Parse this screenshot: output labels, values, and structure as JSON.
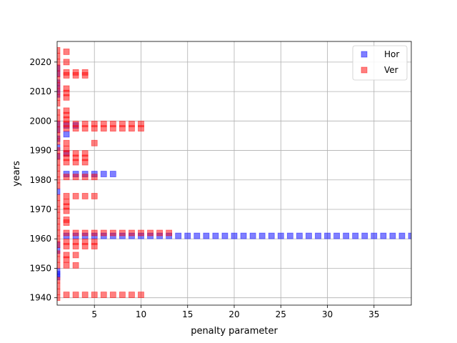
{
  "chart_data": {
    "type": "scatter",
    "title": "",
    "xlabel": "penalty parameter",
    "ylabel": "years",
    "xlim": [
      1,
      39
    ],
    "ylim": [
      1937.5,
      2027
    ],
    "xticks": [
      5,
      10,
      15,
      20,
      25,
      30,
      35
    ],
    "yticks": [
      1940,
      1950,
      1960,
      1970,
      1980,
      1990,
      2000,
      2010,
      2020
    ],
    "grid": true,
    "legend_position": "top-right",
    "series": [
      {
        "name": "Hor",
        "color": "#0000ff",
        "marker": "square",
        "alpha": 0.5,
        "points": [
          [
            2,
            1998.5
          ],
          [
            3,
            1998.5
          ],
          [
            2,
            1995.5
          ],
          [
            2,
            1989
          ],
          [
            2,
            1982
          ],
          [
            3,
            1982
          ],
          [
            4,
            1982
          ],
          [
            5,
            1982
          ],
          [
            6,
            1982
          ],
          [
            7,
            1982
          ],
          [
            2,
            1961
          ],
          [
            3,
            1961
          ],
          [
            4,
            1961
          ],
          [
            5,
            1961
          ],
          [
            6,
            1961
          ],
          [
            7,
            1961
          ],
          [
            8,
            1961
          ],
          [
            9,
            1961
          ],
          [
            10,
            1961
          ],
          [
            11,
            1961
          ],
          [
            12,
            1961
          ],
          [
            13,
            1961
          ],
          [
            14,
            1961
          ],
          [
            15,
            1961
          ],
          [
            16,
            1961
          ],
          [
            17,
            1961
          ],
          [
            18,
            1961
          ],
          [
            19,
            1961
          ],
          [
            20,
            1961
          ],
          [
            21,
            1961
          ],
          [
            22,
            1961
          ],
          [
            23,
            1961
          ],
          [
            24,
            1961
          ],
          [
            25,
            1961
          ],
          [
            26,
            1961
          ],
          [
            27,
            1961
          ],
          [
            28,
            1961
          ],
          [
            29,
            1961
          ],
          [
            30,
            1961
          ],
          [
            31,
            1961
          ],
          [
            32,
            1961
          ],
          [
            33,
            1961
          ],
          [
            34,
            1961
          ],
          [
            35,
            1961
          ],
          [
            36,
            1961
          ],
          [
            37,
            1961
          ],
          [
            38,
            1961
          ],
          [
            39,
            1961
          ],
          [
            1,
            2018
          ],
          [
            1,
            2016
          ],
          [
            1,
            2013
          ],
          [
            1,
            2011
          ],
          [
            1,
            2009
          ],
          [
            1,
            1999
          ],
          [
            1,
            1997
          ],
          [
            1,
            1994
          ],
          [
            1,
            1991
          ],
          [
            1,
            1988
          ],
          [
            1,
            1976
          ],
          [
            1,
            1958
          ],
          [
            1,
            1956
          ],
          [
            1,
            1949
          ],
          [
            1,
            1948
          ],
          [
            1,
            1947
          ]
        ]
      },
      {
        "name": "Ver",
        "color": "#ff0000",
        "marker": "square",
        "alpha": 0.5,
        "points": [
          [
            2,
            2023.5
          ],
          [
            2,
            2020
          ],
          [
            2,
            2016.5
          ],
          [
            3,
            2016.5
          ],
          [
            4,
            2016.5
          ],
          [
            2,
            2015.5
          ],
          [
            3,
            2015.5
          ],
          [
            4,
            2015.5
          ],
          [
            2,
            2011
          ],
          [
            2,
            2009.5
          ],
          [
            2,
            2008
          ],
          [
            2,
            2003.5
          ],
          [
            2,
            2002
          ],
          [
            2,
            2000.5
          ],
          [
            2,
            1999
          ],
          [
            3,
            1999
          ],
          [
            4,
            1999
          ],
          [
            5,
            1999
          ],
          [
            6,
            1999
          ],
          [
            7,
            1999
          ],
          [
            8,
            1999
          ],
          [
            9,
            1999
          ],
          [
            10,
            1999
          ],
          [
            2,
            1997.5
          ],
          [
            3,
            1997.5
          ],
          [
            4,
            1997.5
          ],
          [
            5,
            1997.5
          ],
          [
            6,
            1997.5
          ],
          [
            7,
            1997.5
          ],
          [
            8,
            1997.5
          ],
          [
            9,
            1997.5
          ],
          [
            10,
            1997.5
          ],
          [
            5,
            1992.5
          ],
          [
            2,
            1992.5
          ],
          [
            2,
            1990.5
          ],
          [
            2,
            1989
          ],
          [
            3,
            1989
          ],
          [
            4,
            1989
          ],
          [
            2,
            1987.5
          ],
          [
            3,
            1987.5
          ],
          [
            4,
            1987.5
          ],
          [
            2,
            1986
          ],
          [
            3,
            1986
          ],
          [
            4,
            1986
          ],
          [
            2,
            1981
          ],
          [
            3,
            1981
          ],
          [
            4,
            1981
          ],
          [
            5,
            1981
          ],
          [
            2,
            1974.5
          ],
          [
            3,
            1974.5
          ],
          [
            4,
            1974.5
          ],
          [
            5,
            1974.5
          ],
          [
            2,
            1972.5
          ],
          [
            2,
            1971
          ],
          [
            2,
            1969.5
          ],
          [
            2,
            1966.5
          ],
          [
            2,
            1965.5
          ],
          [
            2,
            1962
          ],
          [
            3,
            1962
          ],
          [
            4,
            1962
          ],
          [
            5,
            1962
          ],
          [
            6,
            1962
          ],
          [
            7,
            1962
          ],
          [
            8,
            1962
          ],
          [
            9,
            1962
          ],
          [
            10,
            1962
          ],
          [
            11,
            1962
          ],
          [
            12,
            1962
          ],
          [
            13,
            1962
          ],
          [
            2,
            1959
          ],
          [
            3,
            1959
          ],
          [
            4,
            1959
          ],
          [
            5,
            1959
          ],
          [
            2,
            1957.5
          ],
          [
            3,
            1957.5
          ],
          [
            4,
            1957.5
          ],
          [
            5,
            1957.5
          ],
          [
            2,
            1954.5
          ],
          [
            3,
            1954.5
          ],
          [
            2,
            1953
          ],
          [
            2,
            1951
          ],
          [
            3,
            1951
          ],
          [
            2,
            1941
          ],
          [
            3,
            1941
          ],
          [
            4,
            1941
          ],
          [
            5,
            1941
          ],
          [
            6,
            1941
          ],
          [
            7,
            1941
          ],
          [
            8,
            1941
          ],
          [
            9,
            1941
          ],
          [
            10,
            1941
          ],
          [
            1,
            2024
          ],
          [
            1,
            2022
          ],
          [
            1,
            2020
          ],
          [
            1,
            2018
          ],
          [
            1,
            2016
          ],
          [
            1,
            2014
          ],
          [
            1,
            2012
          ],
          [
            1,
            2010
          ],
          [
            1,
            2008
          ],
          [
            1,
            2006
          ],
          [
            1,
            2003
          ],
          [
            1,
            2001
          ],
          [
            1,
            1999
          ],
          [
            1,
            1997
          ],
          [
            1,
            1995
          ],
          [
            1,
            1993
          ],
          [
            1,
            1990
          ],
          [
            1,
            1988
          ],
          [
            1,
            1986
          ],
          [
            1,
            1984
          ],
          [
            1,
            1982
          ],
          [
            1,
            1980
          ],
          [
            1,
            1978
          ],
          [
            1,
            1974
          ],
          [
            1,
            1972
          ],
          [
            1,
            1970
          ],
          [
            1,
            1968
          ],
          [
            1,
            1966
          ],
          [
            1,
            1964
          ],
          [
            1,
            1962
          ],
          [
            1,
            1960
          ],
          [
            1,
            1958
          ],
          [
            1,
            1955
          ],
          [
            1,
            1953
          ],
          [
            1,
            1951
          ],
          [
            1,
            1946
          ],
          [
            1,
            1944
          ],
          [
            1,
            1942
          ],
          [
            1,
            1940
          ]
        ]
      }
    ]
  }
}
